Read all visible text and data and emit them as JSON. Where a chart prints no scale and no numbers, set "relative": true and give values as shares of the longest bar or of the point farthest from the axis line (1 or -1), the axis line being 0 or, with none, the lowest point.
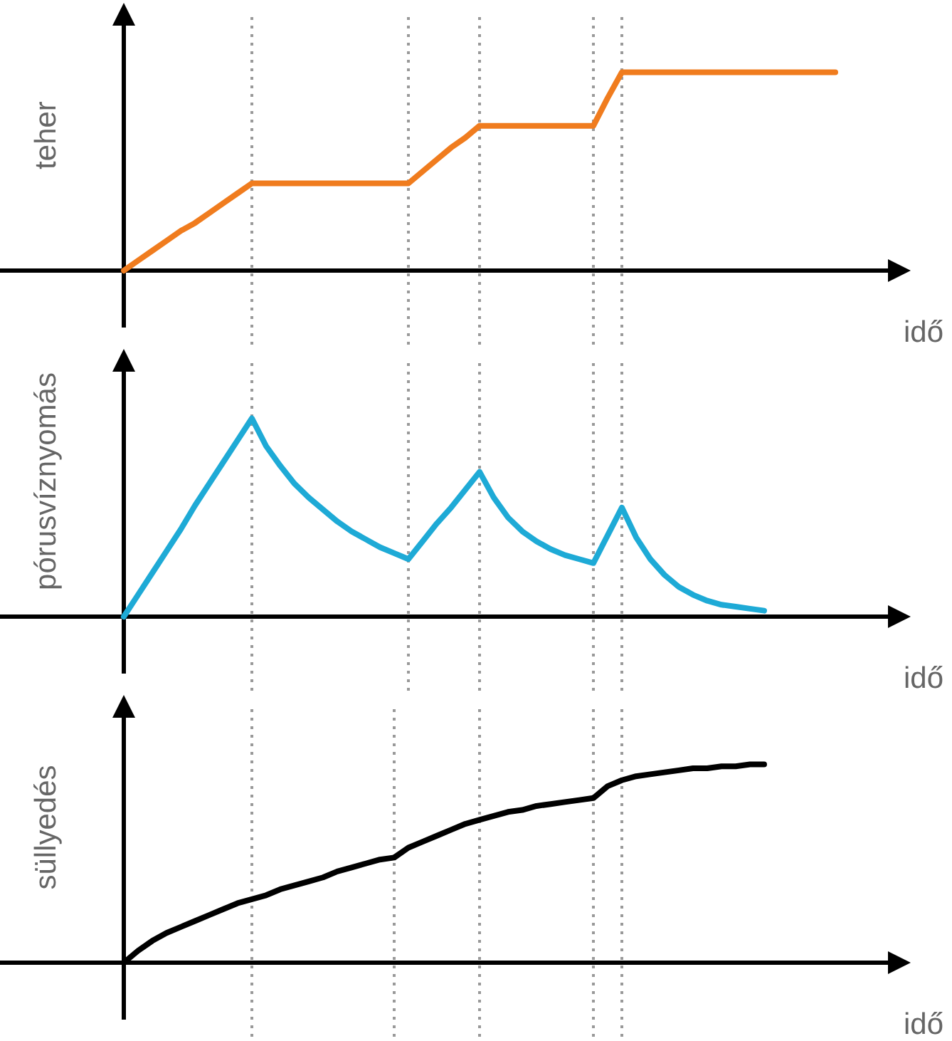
{
  "chart_data": [
    {
      "type": "line",
      "xlabel": "idő",
      "ylabel": "teher",
      "relative": true,
      "grid": "x",
      "categories": [
        null,
        null,
        null,
        null,
        null,
        null,
        null,
        null,
        null,
        null,
        null,
        null,
        null,
        null,
        null,
        null,
        null,
        null,
        null,
        null,
        null,
        null,
        null,
        null,
        null,
        null,
        null,
        null,
        null,
        null,
        null,
        null,
        null,
        null,
        null,
        null,
        null,
        null,
        null,
        null,
        null,
        null,
        null,
        null,
        null,
        null,
        null,
        null,
        null,
        null,
        null,
        null,
        null,
        null,
        null,
        null
      ],
      "series": [
        {
          "color": "#f07c1e",
          "values": [
            0,
            0.05,
            0.1,
            0.15,
            0.2,
            0.24,
            0.29,
            0.34,
            0.39,
            0.44,
            0.44,
            0.44,
            0.44,
            0.44,
            0.44,
            0.44,
            0.44,
            0.44,
            0.44,
            0.44,
            0.44,
            0.5,
            0.56,
            0.62,
            0.67,
            0.73,
            0.73,
            0.73,
            0.73,
            0.73,
            0.73,
            0.73,
            0.73,
            0.73,
            0.87,
            1,
            1,
            1,
            1,
            1,
            1,
            1,
            1,
            1,
            1,
            1,
            1,
            1,
            1,
            1,
            1,
            null,
            null,
            null,
            null,
            null
          ]
        }
      ]
    },
    {
      "type": "line",
      "xlabel": "idő",
      "ylabel": "pórusvíznyomás",
      "relative": true,
      "grid": "x",
      "categories": [
        null,
        null,
        null,
        null,
        null,
        null,
        null,
        null,
        null,
        null,
        null,
        null,
        null,
        null,
        null,
        null,
        null,
        null,
        null,
        null,
        null,
        null,
        null,
        null,
        null,
        null,
        null,
        null,
        null,
        null,
        null,
        null,
        null,
        null,
        null,
        null,
        null,
        null,
        null,
        null,
        null,
        null,
        null,
        null,
        null,
        null,
        null,
        null,
        null,
        null,
        null,
        null,
        null,
        null,
        null,
        null
      ],
      "series": [
        {
          "color": "#1eaad6",
          "values": [
            0,
            0.11,
            0.22,
            0.33,
            0.44,
            0.56,
            0.67,
            0.78,
            0.89,
            1,
            0.86,
            0.76,
            0.67,
            0.6,
            0.54,
            0.48,
            0.43,
            0.39,
            0.35,
            0.32,
            0.29,
            0.38,
            0.47,
            0.55,
            0.64,
            0.73,
            0.6,
            0.5,
            0.43,
            0.38,
            0.34,
            0.31,
            0.29,
            0.27,
            0.41,
            0.55,
            0.4,
            0.29,
            0.21,
            0.15,
            0.11,
            0.08,
            0.06,
            0.05,
            0.04,
            0.03,
            null,
            null,
            null,
            null,
            null,
            null,
            null,
            null,
            null,
            null
          ]
        }
      ]
    },
    {
      "type": "line",
      "xlabel": "idő",
      "ylabel": "süllyedés",
      "relative": true,
      "grid": "x",
      "categories": [
        null,
        null,
        null,
        null,
        null,
        null,
        null,
        null,
        null,
        null,
        null,
        null,
        null,
        null,
        null,
        null,
        null,
        null,
        null,
        null,
        null,
        null,
        null,
        null,
        null,
        null,
        null,
        null,
        null,
        null,
        null,
        null,
        null,
        null,
        null,
        null,
        null,
        null,
        null,
        null,
        null,
        null,
        null,
        null,
        null,
        null,
        null,
        null,
        null,
        null,
        null,
        null,
        null,
        null,
        null,
        null
      ],
      "series": [
        {
          "color": "#000000",
          "values": [
            0,
            0.06,
            0.11,
            0.15,
            0.18,
            0.21,
            0.24,
            0.27,
            0.3,
            0.32,
            0.34,
            0.37,
            0.39,
            0.41,
            0.43,
            0.46,
            0.48,
            0.5,
            0.52,
            0.53,
            0.58,
            0.61,
            0.64,
            0.67,
            0.7,
            0.72,
            0.74,
            0.76,
            0.77,
            0.79,
            0.8,
            0.81,
            0.82,
            0.83,
            0.89,
            0.92,
            0.94,
            0.95,
            0.96,
            0.97,
            0.98,
            0.98,
            0.99,
            0.99,
            1,
            1,
            null,
            null,
            null,
            null,
            null,
            null,
            null,
            null,
            null,
            null
          ]
        }
      ]
    }
  ]
}
